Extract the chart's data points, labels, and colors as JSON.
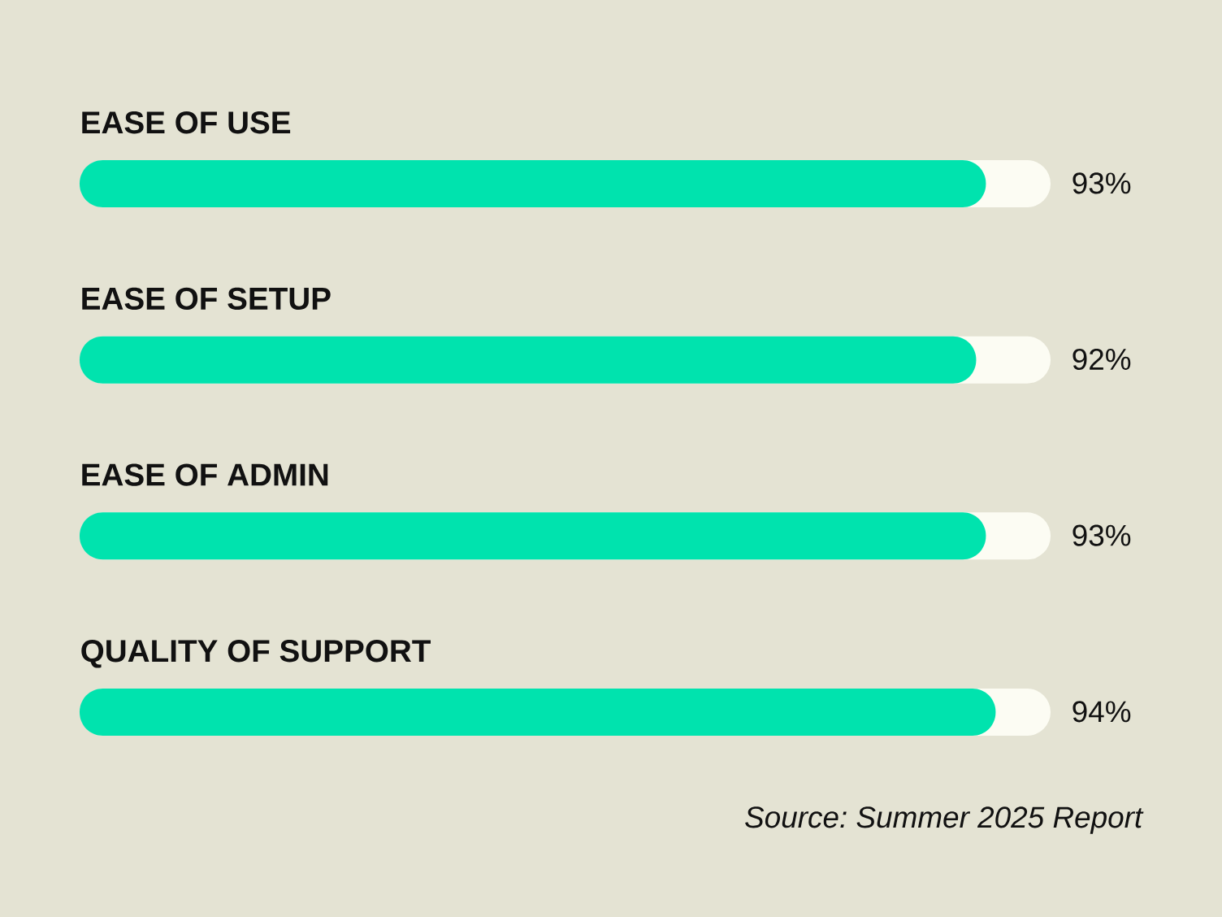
{
  "chart_data": {
    "type": "bar",
    "orientation": "horizontal",
    "categories": [
      "EASE OF USE",
      "EASE OF SETUP",
      "EASE OF ADMIN",
      "QUALITY OF SUPPORT"
    ],
    "values": [
      93,
      92,
      93,
      94
    ],
    "color": "#00e3ae",
    "value_labels": [
      "93%",
      "92%",
      "93%",
      "94%"
    ],
    "tick_labels": "y",
    "annotations": [
      "Source: Summer 2025 Report"
    ]
  }
}
